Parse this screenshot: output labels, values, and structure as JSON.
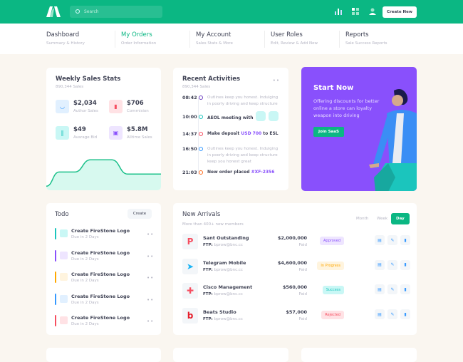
{
  "header": {
    "search_placeholder": "Search",
    "create_label": "Create New",
    "icons": [
      "chart-bar-icon",
      "grid-icon",
      "user-icon"
    ],
    "brand_color": "#0bb783"
  },
  "nav": [
    {
      "title": "Dashboard",
      "sub": "Summary & History"
    },
    {
      "title": "My Orders",
      "sub": "Order Information",
      "active": true
    },
    {
      "title": "My Account",
      "sub": "Sales Stats & More"
    },
    {
      "title": "User Roles",
      "sub": "Edit, Review & Add New"
    },
    {
      "title": "Reports",
      "sub": "Sale Success Reports"
    }
  ],
  "weekly": {
    "title": "Weekly Sales Stats",
    "sub": "890,344 Sales",
    "stats": [
      {
        "value": "$2,034",
        "label": "Author Sales",
        "icon": "basket-icon"
      },
      {
        "value": "$706",
        "label": "Commision",
        "icon": "chart-icon"
      },
      {
        "value": "$49",
        "label": "Avarage Bid",
        "icon": "books-icon"
      },
      {
        "value": "$5.8M",
        "label": "Alltime Sales",
        "icon": "frame-icon"
      }
    ],
    "sparkline": [
      10,
      45,
      45,
      75,
      75,
      40,
      40
    ]
  },
  "activities": {
    "title": "Recent Activities",
    "sub": "890,344 Sales",
    "items": [
      {
        "time": "08:42",
        "text": "Outlines keep you honest. Indulging in poorly driving and keep structure",
        "color": "#6f42c1"
      },
      {
        "time": "10:00",
        "text": "AEOL meeting with",
        "color": "#1bc5bd"
      },
      {
        "time": "14:37",
        "text": "Make deposit ",
        "highlight": "USD 700",
        "after": " to ESL",
        "color": "#f64e60"
      },
      {
        "time": "16:50",
        "text": "Outlines keep you honest. Indulging in poorly driving and keep structure keep you honest great",
        "color": "#3699ff"
      },
      {
        "time": "21:03",
        "text": "New order placed ",
        "highlight": "#XF-2356",
        "color": "#ff6a1a"
      }
    ]
  },
  "promo": {
    "title": "Start Now",
    "text": "Offering discounts for better online a store can loyalty weapon into driving",
    "button": "Join SaaS",
    "color": "#8950fc"
  },
  "todo": {
    "title": "Todo",
    "create": "Create",
    "items": [
      {
        "title": "Create FireStone Logo",
        "due": "Due in 2 Days",
        "color": "#1bc5bd",
        "bg": "#c9f7f5"
      },
      {
        "title": "Create FireStone Logo",
        "due": "Due in 2 Days",
        "color": "#8950fc",
        "bg": "#eee5ff"
      },
      {
        "title": "Create FireStone Logo",
        "due": "Due in 2 Days",
        "color": "#ffa800",
        "bg": "#fff4de"
      },
      {
        "title": "Create FireStone Logo",
        "due": "Due in 2 Days",
        "color": "#3699ff",
        "bg": "#e1f0ff"
      },
      {
        "title": "Create FireStone Logo",
        "due": "Due in 2 Days",
        "color": "#f64e60",
        "bg": "#ffe2e5"
      }
    ]
  },
  "arrivals": {
    "title": "New Arrivals",
    "sub": "More than 400+ new members",
    "tabs": [
      "Month",
      "Week",
      "Day"
    ],
    "active_tab": "Day",
    "ftp_label": "FTP:",
    "rows": [
      {
        "name": "Sant Outstanding",
        "email": "bprow@bnc.cc",
        "amount": "$2,000,000",
        "paid": "Paid",
        "status": "Approved",
        "fg": "#8950fc",
        "bg": "#eee5ff",
        "logo": "P",
        "logo_color": "#f64e60"
      },
      {
        "name": "Telegram Mobile",
        "email": "bprow@bnc.cc",
        "amount": "$4,600,000",
        "paid": "Paid",
        "status": "In Progress",
        "fg": "#ffa800",
        "bg": "#fff4de",
        "logo": "➤",
        "logo_color": "#1bb4f5"
      },
      {
        "name": "Cisco Management",
        "email": "bprow@bnc.cc",
        "amount": "$560,000",
        "paid": "Paid",
        "status": "Success",
        "fg": "#1bc5bd",
        "bg": "#c9f7f5",
        "logo": "✚",
        "logo_color": "#f64e60"
      },
      {
        "name": "Beats Studio",
        "email": "bprow@bnc.cc",
        "amount": "$57,000",
        "paid": "Paid",
        "status": "Rejected",
        "fg": "#f64e60",
        "bg": "#ffe2e5",
        "logo": "b",
        "logo_color": "#e61e2b"
      }
    ]
  }
}
